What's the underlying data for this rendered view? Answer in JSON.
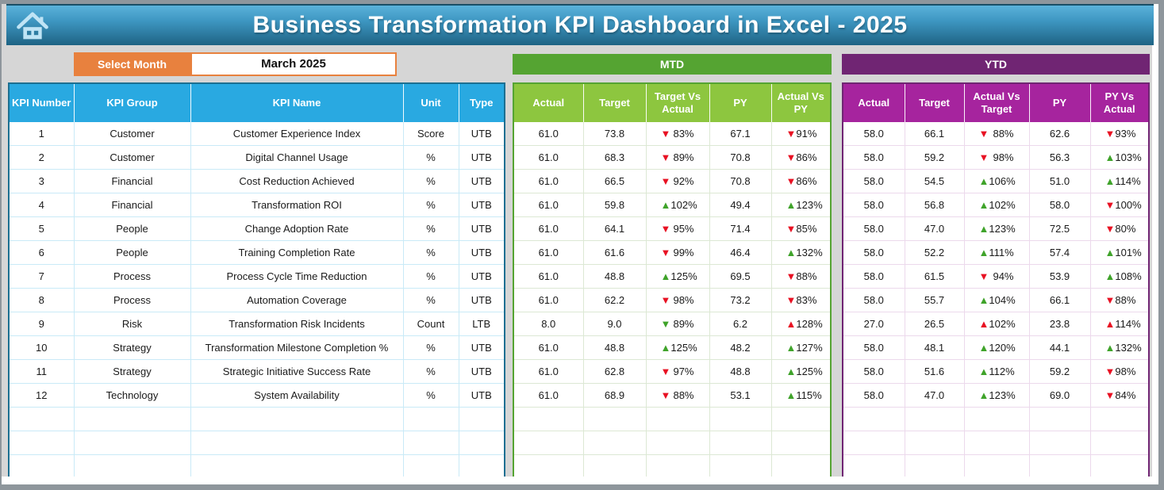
{
  "window": {
    "title": "Business Transformation KPI Dashboard in Excel - 2025"
  },
  "toolbar": {
    "select_month_label": "Select Month",
    "selected_month": "March 2025"
  },
  "icons": {
    "home": "home-icon"
  },
  "colors": {
    "header_blue": "#29A9E1",
    "kpi_border_teal": "#1D6F91",
    "green_dark": "#55A432",
    "green_light": "#8DC63F",
    "purple_dark": "#702573",
    "magenta": "#A6249E",
    "orange": "#E8813E",
    "arrow_red": "#E81123",
    "arrow_green": "#3FA32A",
    "titlebar_blue_top": "#5BB2DA",
    "titlebar_blue_bottom": "#1E6384"
  },
  "kpi_table": {
    "headers": [
      "KPI Number",
      "KPI Group",
      "KPI Name",
      "Unit",
      "Type"
    ],
    "empty_rows": 4,
    "rows": [
      {
        "number": "1",
        "group": "Customer",
        "name": "Customer Experience Index",
        "unit": "Score",
        "type": "UTB"
      },
      {
        "number": "2",
        "group": "Customer",
        "name": "Digital Channel Usage",
        "unit": "%",
        "type": "UTB"
      },
      {
        "number": "3",
        "group": "Financial",
        "name": "Cost Reduction Achieved",
        "unit": "%",
        "type": "UTB"
      },
      {
        "number": "4",
        "group": "Financial",
        "name": "Transformation ROI",
        "unit": "%",
        "type": "UTB"
      },
      {
        "number": "5",
        "group": "People",
        "name": "Change Adoption Rate",
        "unit": "%",
        "type": "UTB"
      },
      {
        "number": "6",
        "group": "People",
        "name": "Training Completion Rate",
        "unit": "%",
        "type": "UTB"
      },
      {
        "number": "7",
        "group": "Process",
        "name": "Process Cycle Time Reduction",
        "unit": "%",
        "type": "UTB"
      },
      {
        "number": "8",
        "group": "Process",
        "name": "Automation Coverage",
        "unit": "%",
        "type": "UTB"
      },
      {
        "number": "9",
        "group": "Risk",
        "name": "Transformation Risk Incidents",
        "unit": "Count",
        "type": "LTB"
      },
      {
        "number": "10",
        "group": "Strategy",
        "name": "Transformation Milestone Completion %",
        "unit": "%",
        "type": "UTB"
      },
      {
        "number": "11",
        "group": "Strategy",
        "name": "Strategic Initiative Success Rate",
        "unit": "%",
        "type": "UTB"
      },
      {
        "number": "12",
        "group": "Technology",
        "name": "System Availability",
        "unit": "%",
        "type": "UTB"
      }
    ]
  },
  "mtd": {
    "band_label": "MTD",
    "headers": [
      "Actual",
      "Target",
      "Target Vs Actual",
      "PY",
      "Actual Vs PY"
    ],
    "empty_rows": 4,
    "rows": [
      {
        "actual": "61.0",
        "target": "73.8",
        "tva": {
          "dir": "down",
          "color": "red",
          "value": "83%"
        },
        "py": "67.1",
        "avp": {
          "dir": "down",
          "color": "red",
          "value": "91%"
        }
      },
      {
        "actual": "61.0",
        "target": "68.3",
        "tva": {
          "dir": "down",
          "color": "red",
          "value": "89%"
        },
        "py": "70.8",
        "avp": {
          "dir": "down",
          "color": "red",
          "value": "86%"
        }
      },
      {
        "actual": "61.0",
        "target": "66.5",
        "tva": {
          "dir": "down",
          "color": "red",
          "value": "92%"
        },
        "py": "70.8",
        "avp": {
          "dir": "down",
          "color": "red",
          "value": "86%"
        }
      },
      {
        "actual": "61.0",
        "target": "59.8",
        "tva": {
          "dir": "up",
          "color": "green",
          "value": "102%"
        },
        "py": "49.4",
        "avp": {
          "dir": "up",
          "color": "green",
          "value": "123%"
        }
      },
      {
        "actual": "61.0",
        "target": "64.1",
        "tva": {
          "dir": "down",
          "color": "red",
          "value": "95%"
        },
        "py": "71.4",
        "avp": {
          "dir": "down",
          "color": "red",
          "value": "85%"
        }
      },
      {
        "actual": "61.0",
        "target": "61.6",
        "tva": {
          "dir": "down",
          "color": "red",
          "value": "99%"
        },
        "py": "46.4",
        "avp": {
          "dir": "up",
          "color": "green",
          "value": "132%"
        }
      },
      {
        "actual": "61.0",
        "target": "48.8",
        "tva": {
          "dir": "up",
          "color": "green",
          "value": "125%"
        },
        "py": "69.5",
        "avp": {
          "dir": "down",
          "color": "red",
          "value": "88%"
        }
      },
      {
        "actual": "61.0",
        "target": "62.2",
        "tva": {
          "dir": "down",
          "color": "red",
          "value": "98%"
        },
        "py": "73.2",
        "avp": {
          "dir": "down",
          "color": "red",
          "value": "83%"
        }
      },
      {
        "actual": "8.0",
        "target": "9.0",
        "tva": {
          "dir": "down",
          "color": "green",
          "value": "89%"
        },
        "py": "6.2",
        "avp": {
          "dir": "up",
          "color": "red",
          "value": "128%"
        }
      },
      {
        "actual": "61.0",
        "target": "48.8",
        "tva": {
          "dir": "up",
          "color": "green",
          "value": "125%"
        },
        "py": "48.2",
        "avp": {
          "dir": "up",
          "color": "green",
          "value": "127%"
        }
      },
      {
        "actual": "61.0",
        "target": "62.8",
        "tva": {
          "dir": "down",
          "color": "red",
          "value": "97%"
        },
        "py": "48.8",
        "avp": {
          "dir": "up",
          "color": "green",
          "value": "125%"
        }
      },
      {
        "actual": "61.0",
        "target": "68.9",
        "tva": {
          "dir": "down",
          "color": "red",
          "value": "88%"
        },
        "py": "53.1",
        "avp": {
          "dir": "up",
          "color": "green",
          "value": "115%"
        }
      }
    ]
  },
  "ytd": {
    "band_label": "YTD",
    "headers": [
      "Actual",
      "Target",
      "Actual Vs Target",
      "PY",
      "PY Vs Actual"
    ],
    "empty_rows": 4,
    "rows": [
      {
        "actual": "58.0",
        "target": "66.1",
        "avt": {
          "dir": "down",
          "color": "red",
          "value": "88%"
        },
        "py": "62.6",
        "pva": {
          "dir": "down",
          "color": "red",
          "value": "93%"
        }
      },
      {
        "actual": "58.0",
        "target": "59.2",
        "avt": {
          "dir": "down",
          "color": "red",
          "value": "98%"
        },
        "py": "56.3",
        "pva": {
          "dir": "up",
          "color": "green",
          "value": "103%"
        }
      },
      {
        "actual": "58.0",
        "target": "54.5",
        "avt": {
          "dir": "up",
          "color": "green",
          "value": "106%"
        },
        "py": "51.0",
        "pva": {
          "dir": "up",
          "color": "green",
          "value": "114%"
        }
      },
      {
        "actual": "58.0",
        "target": "56.8",
        "avt": {
          "dir": "up",
          "color": "green",
          "value": "102%"
        },
        "py": "58.0",
        "pva": {
          "dir": "down",
          "color": "red",
          "value": "100%"
        }
      },
      {
        "actual": "58.0",
        "target": "47.0",
        "avt": {
          "dir": "up",
          "color": "green",
          "value": "123%"
        },
        "py": "72.5",
        "pva": {
          "dir": "down",
          "color": "red",
          "value": "80%"
        }
      },
      {
        "actual": "58.0",
        "target": "52.2",
        "avt": {
          "dir": "up",
          "color": "green",
          "value": "111%"
        },
        "py": "57.4",
        "pva": {
          "dir": "up",
          "color": "green",
          "value": "101%"
        }
      },
      {
        "actual": "58.0",
        "target": "61.5",
        "avt": {
          "dir": "down",
          "color": "red",
          "value": "94%"
        },
        "py": "53.9",
        "pva": {
          "dir": "up",
          "color": "green",
          "value": "108%"
        }
      },
      {
        "actual": "58.0",
        "target": "55.7",
        "avt": {
          "dir": "up",
          "color": "green",
          "value": "104%"
        },
        "py": "66.1",
        "pva": {
          "dir": "down",
          "color": "red",
          "value": "88%"
        }
      },
      {
        "actual": "27.0",
        "target": "26.5",
        "avt": {
          "dir": "up",
          "color": "red",
          "value": "102%"
        },
        "py": "23.8",
        "pva": {
          "dir": "up",
          "color": "red",
          "value": "114%"
        }
      },
      {
        "actual": "58.0",
        "target": "48.1",
        "avt": {
          "dir": "up",
          "color": "green",
          "value": "120%"
        },
        "py": "44.1",
        "pva": {
          "dir": "up",
          "color": "green",
          "value": "132%"
        }
      },
      {
        "actual": "58.0",
        "target": "51.6",
        "avt": {
          "dir": "up",
          "color": "green",
          "value": "112%"
        },
        "py": "59.2",
        "pva": {
          "dir": "down",
          "color": "red",
          "value": "98%"
        }
      },
      {
        "actual": "58.0",
        "target": "47.0",
        "avt": {
          "dir": "up",
          "color": "green",
          "value": "123%"
        },
        "py": "69.0",
        "pva": {
          "dir": "down",
          "color": "red",
          "value": "84%"
        }
      }
    ]
  }
}
